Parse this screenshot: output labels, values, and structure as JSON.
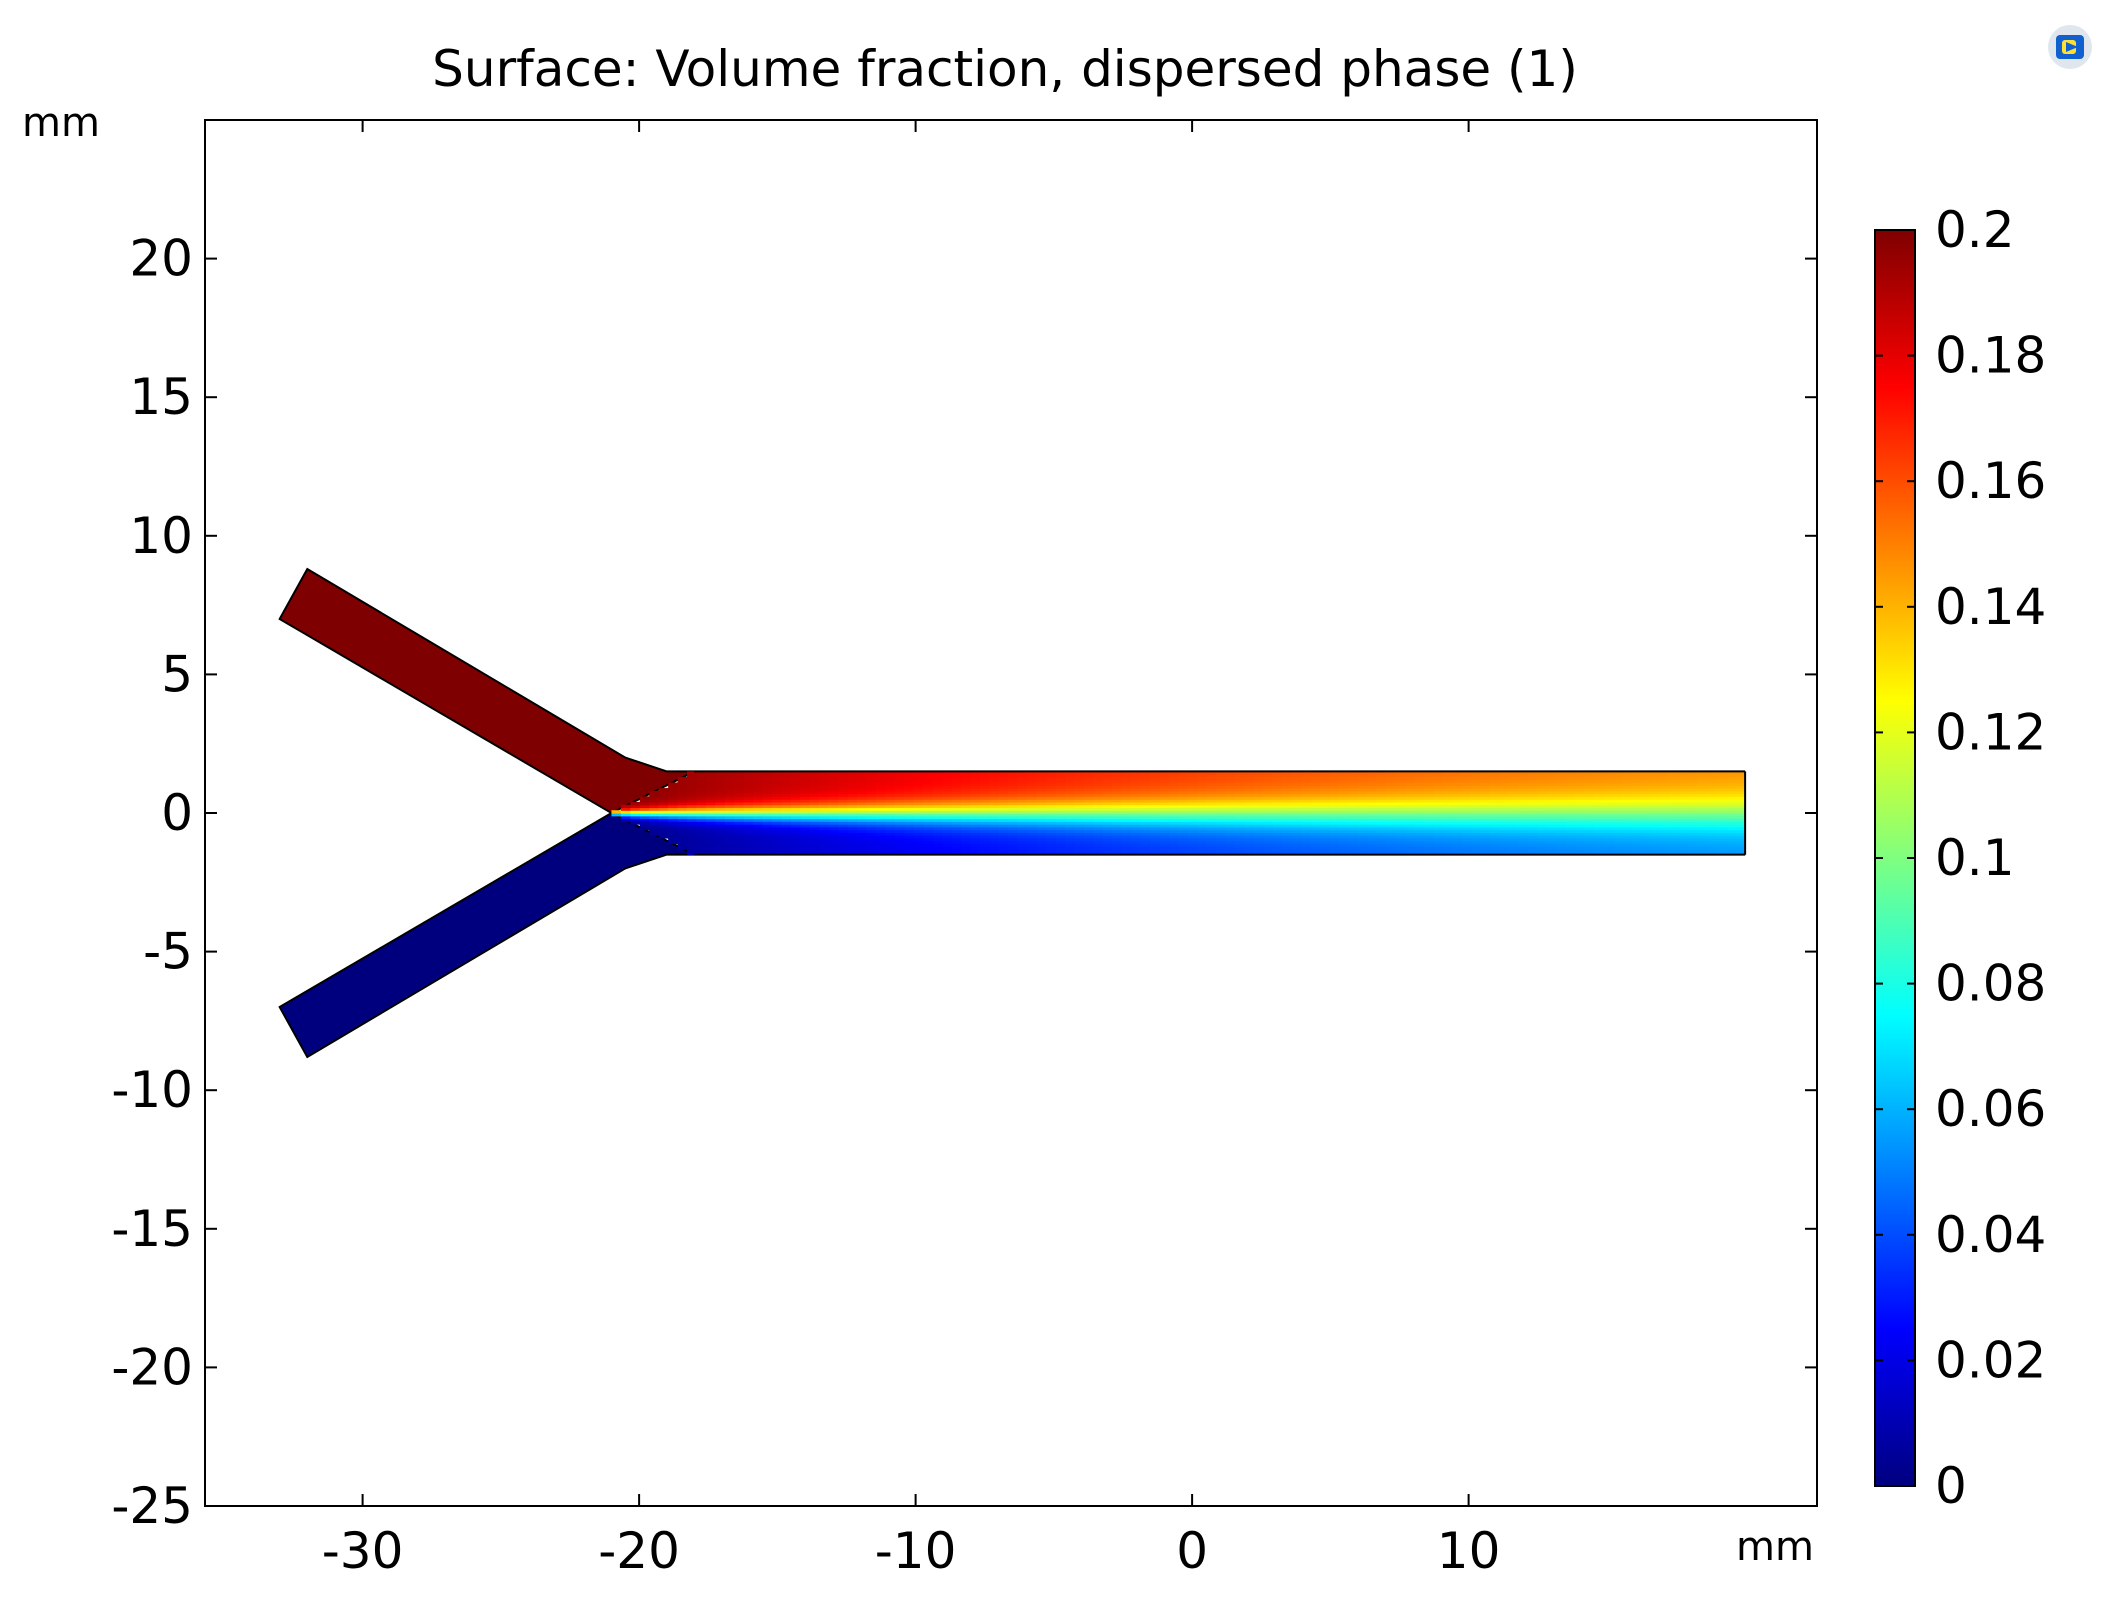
{
  "chart_data": {
    "type": "heatmap",
    "title": "Surface: Volume fraction, dispersed phase (1)",
    "xunit": "mm",
    "yunit": "mm",
    "xlim": [
      -35.7,
      22.6
    ],
    "ylim": [
      -25,
      25
    ],
    "xticks": [
      -30,
      -20,
      -10,
      0,
      10
    ],
    "xtick_labels": [
      "-30",
      "-20",
      "-10",
      "0",
      "10"
    ],
    "yticks": [
      20,
      15,
      10,
      5,
      0,
      -5,
      -10,
      -15,
      -20,
      -25
    ],
    "ytick_labels": [
      "20",
      "15",
      "10",
      "5",
      "0",
      "-5",
      "-10",
      "-15",
      "-20",
      "-25"
    ],
    "colorbar": {
      "min": 0,
      "max": 0.2,
      "colormap": "jet",
      "ticks": [
        0.2,
        0.18,
        0.16,
        0.14,
        0.12,
        0.1,
        0.08,
        0.06,
        0.04,
        0.02,
        0
      ],
      "tick_labels": [
        "0.2",
        "0.18",
        "0.16",
        "0.14",
        "0.12",
        "0.1",
        "0.08",
        "0.06",
        "0.04",
        "0.02",
        "0"
      ]
    },
    "geometry": {
      "upper_inlet_value": 0.2,
      "lower_inlet_value": 0,
      "junction_x": -21,
      "outlet_channel_x": [
        -18,
        20
      ],
      "outlet_channel_y": [
        -1.5,
        1.5
      ],
      "outlet_mixed_value": 0.1,
      "upper_inlet_polygon": [
        [
          -33,
          7
        ],
        [
          -32,
          8.8
        ],
        [
          -20.5,
          2
        ],
        [
          -19,
          1.5
        ],
        [
          -18,
          1.5
        ],
        [
          -21,
          0
        ]
      ],
      "lower_inlet_polygon": [
        [
          -33,
          -7
        ],
        [
          -32,
          -8.8
        ],
        [
          -20.5,
          -2
        ],
        [
          -19,
          -1.5
        ],
        [
          -18,
          -1.5
        ],
        [
          -21,
          0
        ]
      ]
    }
  },
  "icons": {
    "corner": "comsol-logo-icon"
  }
}
